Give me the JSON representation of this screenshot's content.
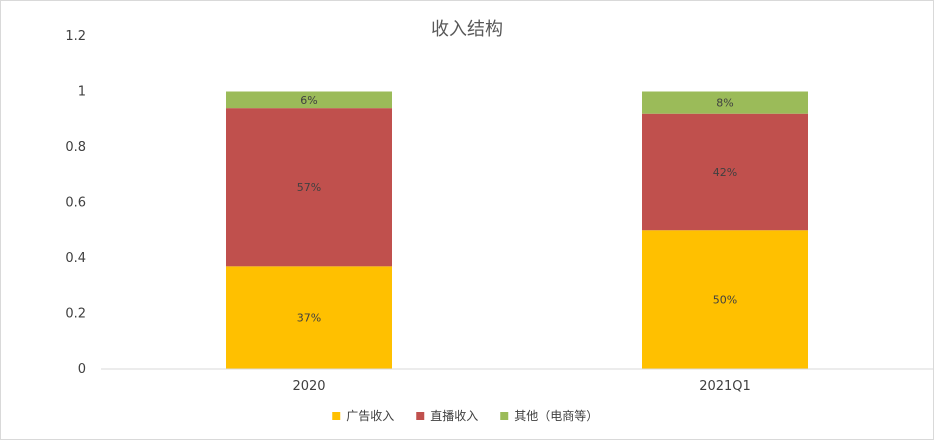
{
  "chart_data": {
    "type": "bar",
    "stacked": true,
    "title": "收入结构",
    "categories": [
      "2020",
      "2021Q1"
    ],
    "series": [
      {
        "name": "广告收入",
        "values": [
          0.37,
          0.5
        ],
        "labels": [
          "37%",
          "50%"
        ],
        "color": "#FFC000"
      },
      {
        "name": "直播收入",
        "values": [
          0.57,
          0.42
        ],
        "labels": [
          "57%",
          "42%"
        ],
        "color": "#C0504D"
      },
      {
        "name": "其他（电商等）",
        "values": [
          0.06,
          0.08
        ],
        "labels": [
          "6%",
          "8%"
        ],
        "color": "#9BBB59"
      }
    ],
    "yticks": [
      "0",
      "0.2",
      "0.4",
      "0.6",
      "0.8",
      "1",
      "1.2"
    ],
    "ylim": [
      0,
      1.2
    ],
    "legend_position": "bottom",
    "grid": false
  }
}
